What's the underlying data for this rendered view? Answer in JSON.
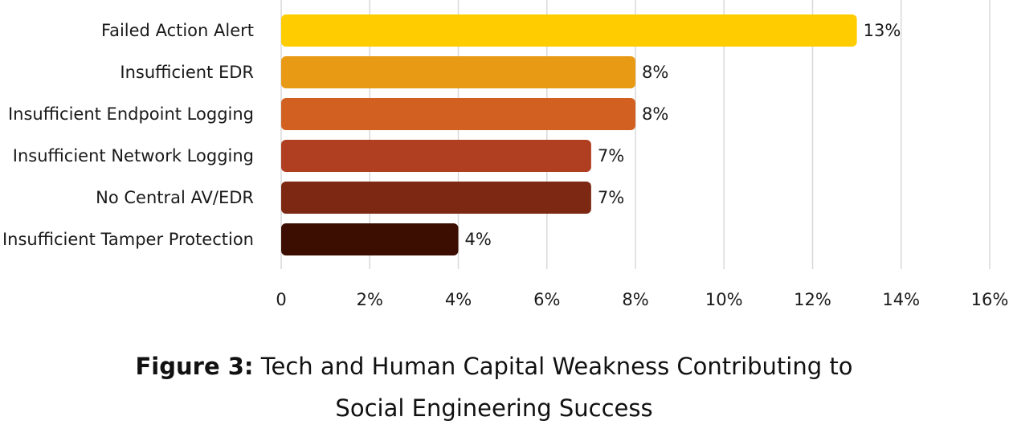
{
  "chart_data": {
    "type": "bar",
    "orientation": "horizontal",
    "categories": [
      "Failed Action Alert",
      "Insufficient EDR",
      "Insufficient Endpoint Logging",
      "Insufficient Network Logging",
      "No Central AV/EDR",
      "Insufficient Tamper Protection"
    ],
    "values": [
      13,
      8,
      8,
      7,
      7,
      4
    ],
    "data_labels": [
      "13%",
      "8%",
      "8%",
      "7%",
      "7%",
      "4%"
    ],
    "colors": [
      "#FFCC00",
      "#E89A14",
      "#D26121",
      "#B03E21",
      "#7C2813",
      "#3C0E02"
    ],
    "xlim": [
      0,
      16
    ],
    "xticks": [
      0,
      2,
      4,
      6,
      8,
      10,
      12,
      14,
      16
    ],
    "xtick_labels": [
      "0",
      "2%",
      "4%",
      "6%",
      "8%",
      "10%",
      "12%",
      "14%",
      "16%"
    ],
    "grid": "vertical",
    "legend": "none"
  },
  "caption": {
    "figure_label": "Figure 3:",
    "line1": "Tech and Human Capital Weakness Contributing to",
    "line2": "Social Engineering Success"
  }
}
